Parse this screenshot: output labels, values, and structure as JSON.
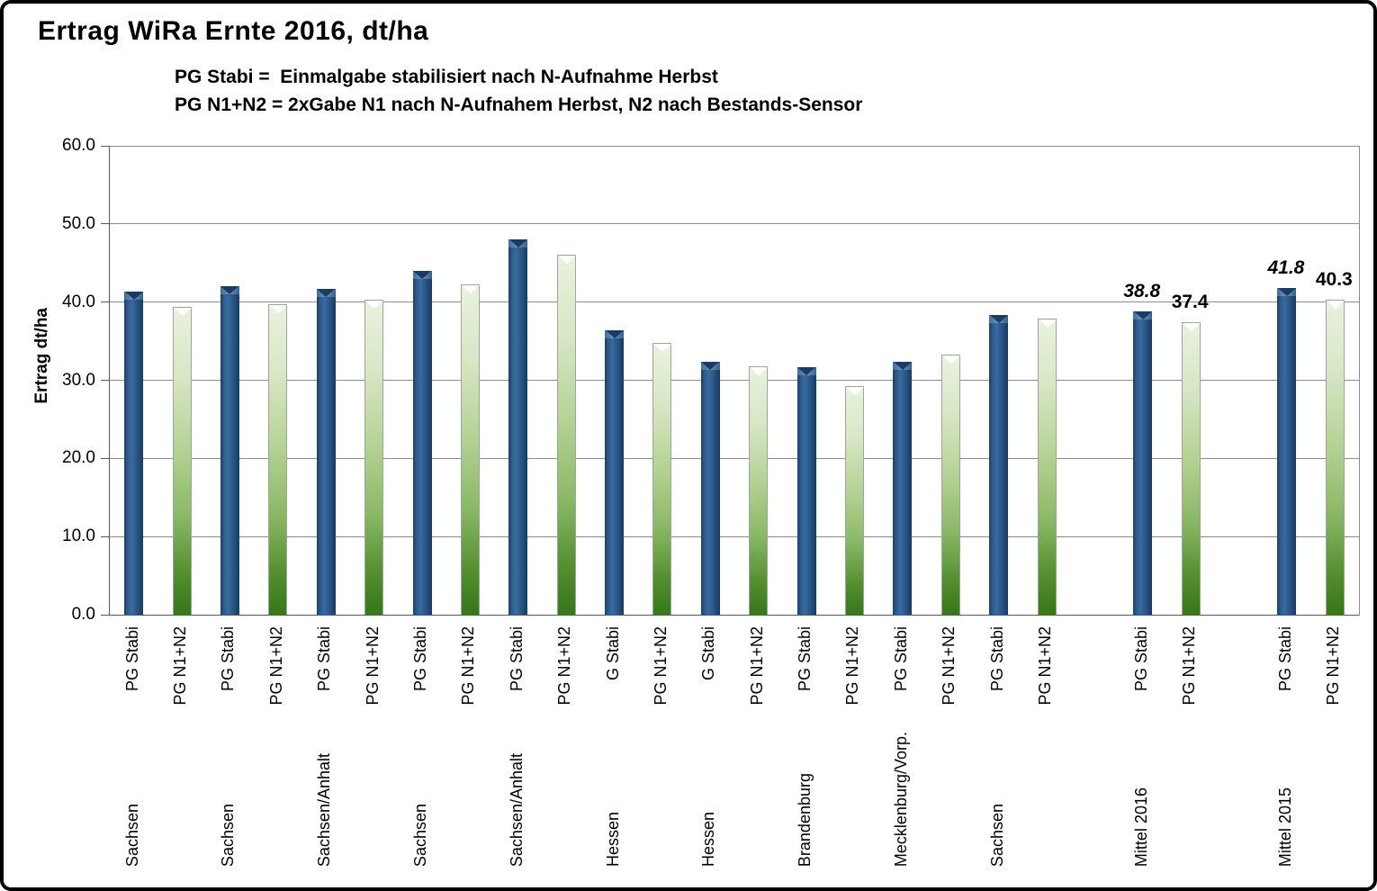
{
  "title": "Ertrag WiRa Ernte 2016, dt/ha",
  "subtitle_line1": "PG Stabi =  Einmalgabe stabilisiert nach N-Aufnahme Herbst",
  "subtitle_line2": "PG N1+N2 = 2xGabe N1 nach N-Aufnahem Herbst, N2 nach Bestands-Sensor",
  "chart_data": {
    "type": "bar",
    "title": "Ertrag WiRa Ernte 2016, dt/ha",
    "ylabel": "Ertrag dt/ha",
    "xlabel": "",
    "ylim": [
      0,
      60
    ],
    "ytick_step": 10,
    "ytick_labels": [
      "0.0",
      "10.0",
      "20.0",
      "30.0",
      "40.0",
      "50.0",
      "60.0"
    ],
    "grid": true,
    "legend": "none",
    "colors": {
      "pg_stabi_blue": "#2B5C8C",
      "pg_n1n2_green_light": "#E6F0DA",
      "pg_n1n2_green_dark": "#357719",
      "gridline": "#8C8C8C",
      "axis": "#595959"
    },
    "groups": [
      {
        "region": "Sachsen",
        "gap_before": 0,
        "bars": [
          {
            "label": "PG Stabi",
            "series": "blue",
            "value": 41.3
          },
          {
            "label": "PG N1+N2",
            "series": "green",
            "value": 39.4
          }
        ]
      },
      {
        "region": "Sachsen",
        "gap_before": 0,
        "bars": [
          {
            "label": "PG Stabi",
            "series": "blue",
            "value": 42.0
          },
          {
            "label": "PG N1+N2",
            "series": "green",
            "value": 39.7
          }
        ]
      },
      {
        "region": "Sachsen/Anhalt",
        "gap_before": 0,
        "bars": [
          {
            "label": "PG Stabi",
            "series": "blue",
            "value": 41.7
          },
          {
            "label": "PG N1+N2",
            "series": "green",
            "value": 40.3
          }
        ]
      },
      {
        "region": "Sachsen",
        "gap_before": 0,
        "bars": [
          {
            "label": "PG Stabi",
            "series": "blue",
            "value": 44.0
          },
          {
            "label": "PG N1+N2",
            "series": "green",
            "value": 42.3
          }
        ]
      },
      {
        "region": "Sachsen/Anhalt",
        "gap_before": 0,
        "bars": [
          {
            "label": "PG Stabi",
            "series": "blue",
            "value": 48.0
          },
          {
            "label": "PG N1+N2",
            "series": "green",
            "value": 46.1
          }
        ]
      },
      {
        "region": "Hessen",
        "gap_before": 0,
        "bars": [
          {
            "label": "G Stabi",
            "series": "blue",
            "value": 36.4
          },
          {
            "label": "PG N1+N2",
            "series": "green",
            "value": 34.8
          }
        ]
      },
      {
        "region": "Hessen",
        "gap_before": 0,
        "bars": [
          {
            "label": "G Stabi",
            "series": "blue",
            "value": 32.4
          },
          {
            "label": "PG N1+N2",
            "series": "green",
            "value": 31.8
          }
        ]
      },
      {
        "region": "Brandenburg",
        "gap_before": 0,
        "bars": [
          {
            "label": "PG Stabi",
            "series": "blue",
            "value": 31.7
          },
          {
            "label": "PG N1+N2",
            "series": "green",
            "value": 29.2
          }
        ]
      },
      {
        "region": "Mecklenburg/Vorp.",
        "gap_before": 0,
        "bars": [
          {
            "label": "PG Stabi",
            "series": "blue",
            "value": 32.4
          },
          {
            "label": "PG N1+N2",
            "series": "green",
            "value": 33.3
          }
        ]
      },
      {
        "region": "Sachsen",
        "gap_before": 0,
        "bars": [
          {
            "label": "PG Stabi",
            "series": "blue",
            "value": 38.3
          },
          {
            "label": "PG N1+N2",
            "series": "green",
            "value": 37.9
          }
        ]
      },
      {
        "region": "Mittel 2016",
        "gap_before": 1,
        "bars": [
          {
            "label": "PG Stabi",
            "series": "blue",
            "value": 38.8,
            "data_label": "38.8"
          },
          {
            "label": "PG N1+N2",
            "series": "green",
            "value": 37.4,
            "data_label": "37.4"
          }
        ]
      },
      {
        "region": "Mittel 2015",
        "gap_before": 1,
        "bars": [
          {
            "label": "PG Stabi",
            "series": "blue",
            "value": 41.8,
            "data_label": "41.8"
          },
          {
            "label": "PG N1+N2",
            "series": "green",
            "value": 40.3,
            "data_label": "40.3"
          }
        ]
      }
    ]
  }
}
